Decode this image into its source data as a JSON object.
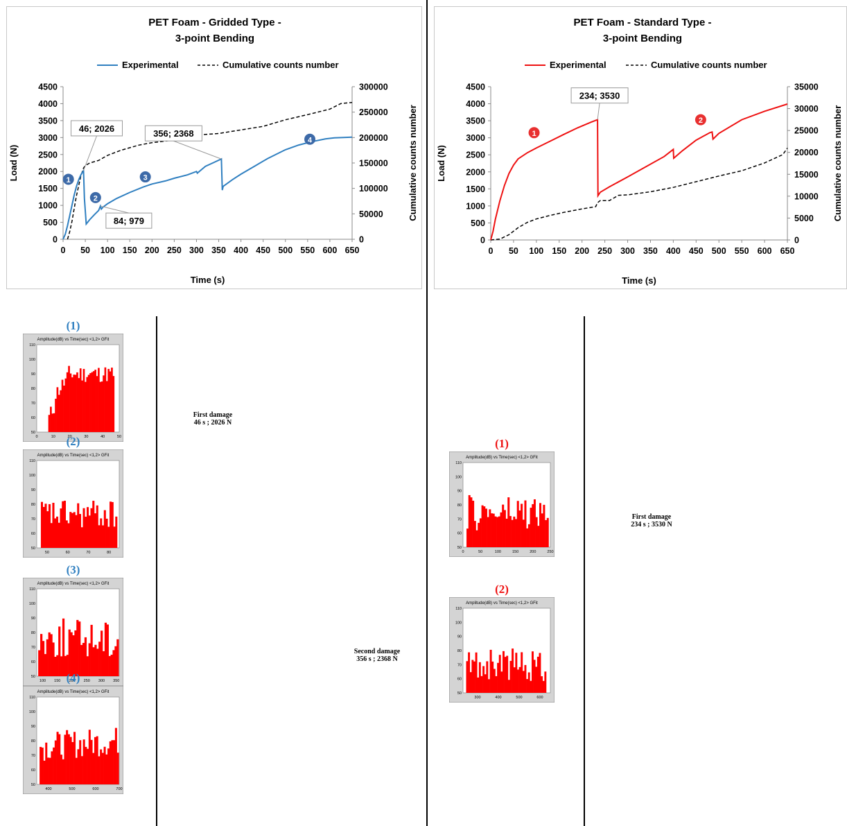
{
  "colors": {
    "gridded": "#2f7fc0",
    "standard": "#ee1111",
    "cumulative": "#000000",
    "marker_blue": "#3d6aa8",
    "marker_red": "#e83030",
    "hist_bar": "#ff0000",
    "blue_arrow": "#1a68b8",
    "red_arrow": "#e81818"
  },
  "chart_data": [
    {
      "type": "line",
      "title": "PET Foam - Gridded Type -",
      "subtitle": "3-point Bending",
      "xlabel": "Time (s)",
      "ylabel": "Load (N)",
      "y2label": "Cumulative counts number",
      "xlim": [
        0,
        650
      ],
      "ylim": [
        0,
        4500
      ],
      "y2lim": [
        0,
        300000
      ],
      "xticks": [
        "0",
        "50",
        "100",
        "150",
        "200",
        "250",
        "300",
        "350",
        "400",
        "450",
        "500",
        "550",
        "600",
        "650"
      ],
      "yticks": [
        "0",
        "500",
        "1000",
        "1500",
        "2000",
        "2500",
        "3000",
        "3500",
        "4000",
        "4500"
      ],
      "y2ticks": [
        "0",
        "50000",
        "100000",
        "150000",
        "200000",
        "250000",
        "300000"
      ],
      "legend_position": "top",
      "series": [
        {
          "name": "Experimental",
          "axis": "left",
          "style": "solid",
          "x": [
            0,
            5,
            10,
            15,
            20,
            25,
            30,
            35,
            40,
            46,
            48,
            52,
            60,
            70,
            80,
            84,
            86,
            90,
            100,
            120,
            150,
            180,
            200,
            230,
            250,
            280,
            300,
            302,
            320,
            340,
            356,
            358,
            360,
            380,
            400,
            430,
            460,
            500,
            530,
            560,
            590,
            610,
            630,
            650
          ],
          "y": [
            0,
            150,
            400,
            700,
            1000,
            1300,
            1550,
            1750,
            1900,
            2026,
            1200,
            450,
            580,
            720,
            850,
            979,
            890,
            950,
            1050,
            1200,
            1380,
            1540,
            1630,
            1720,
            1800,
            1900,
            2000,
            1950,
            2150,
            2270,
            2368,
            1450,
            1560,
            1750,
            1920,
            2150,
            2380,
            2640,
            2780,
            2880,
            2960,
            2990,
            3000,
            3010
          ]
        },
        {
          "name": "Cumulative counts number",
          "axis": "right",
          "style": "dashed",
          "x": [
            10,
            15,
            20,
            25,
            30,
            35,
            40,
            46,
            50,
            60,
            80,
            100,
            130,
            150,
            170,
            200,
            230,
            250,
            300,
            350,
            400,
            450,
            500,
            550,
            600,
            625,
            650
          ],
          "y": [
            0,
            15000,
            35000,
            60000,
            85000,
            105000,
            125000,
            140000,
            145000,
            150000,
            155000,
            165000,
            175000,
            180000,
            185000,
            190000,
            193000,
            196000,
            205000,
            208000,
            215000,
            222000,
            235000,
            245000,
            256000,
            267000,
            269000
          ]
        }
      ],
      "annotations": [
        {
          "label": "46; 2026",
          "x": 46,
          "y": 2026
        },
        {
          "label": "84; 979",
          "x": 84,
          "y": 979
        },
        {
          "label": "356; 2368",
          "x": 356,
          "y": 2368
        }
      ],
      "markers": [
        {
          "label": "1",
          "x": 12,
          "y": 1770
        },
        {
          "label": "2",
          "x": 73,
          "y": 1230
        },
        {
          "label": "3",
          "x": 185,
          "y": 1840
        },
        {
          "label": "4",
          "x": 555,
          "y": 2950
        }
      ]
    },
    {
      "type": "line",
      "title": "PET Foam - Standard Type -",
      "subtitle": "3-point Bending",
      "xlabel": "Time (s)",
      "ylabel": "Load (N)",
      "y2label": "Cumulative counts number",
      "xlim": [
        0,
        650
      ],
      "ylim": [
        0,
        4500
      ],
      "y2lim": [
        0,
        35000
      ],
      "xticks": [
        "0",
        "50",
        "100",
        "150",
        "200",
        "250",
        "300",
        "350",
        "400",
        "450",
        "500",
        "550",
        "600",
        "650"
      ],
      "yticks": [
        "0",
        "500",
        "1000",
        "1500",
        "2000",
        "2500",
        "3000",
        "3500",
        "4000",
        "4500"
      ],
      "y2ticks": [
        "0",
        "5000",
        "10000",
        "15000",
        "20000",
        "25000",
        "30000",
        "35000"
      ],
      "legend_position": "top",
      "series": [
        {
          "name": "Experimental",
          "axis": "left",
          "style": "solid",
          "x": [
            0,
            5,
            10,
            20,
            30,
            40,
            50,
            60,
            80,
            100,
            130,
            160,
            190,
            220,
            234,
            235,
            240,
            260,
            300,
            340,
            380,
            400,
            401,
            420,
            450,
            480,
            485,
            487,
            500,
            550,
            600,
            650
          ],
          "y": [
            0,
            250,
            600,
            1150,
            1600,
            1950,
            2200,
            2380,
            2560,
            2700,
            2900,
            3100,
            3290,
            3460,
            3530,
            1300,
            1400,
            1560,
            1850,
            2150,
            2450,
            2660,
            2400,
            2620,
            2930,
            3150,
            3170,
            2960,
            3130,
            3530,
            3780,
            3990
          ]
        },
        {
          "name": "Cumulative counts number",
          "axis": "right",
          "style": "dashed",
          "x": [
            0,
            20,
            40,
            60,
            80,
            100,
            130,
            160,
            200,
            230,
            234,
            240,
            260,
            280,
            300,
            350,
            400,
            450,
            500,
            550,
            600,
            640,
            650
          ],
          "y": [
            0,
            200,
            1200,
            2800,
            4000,
            4800,
            5600,
            6300,
            7100,
            7600,
            8500,
            9000,
            9000,
            10200,
            10300,
            11000,
            12000,
            13300,
            14600,
            15800,
            17600,
            19500,
            21000
          ]
        }
      ],
      "annotations": [
        {
          "label": "234; 3530",
          "x": 234,
          "y": 3530
        }
      ],
      "markers": [
        {
          "label": "1",
          "x": 95,
          "y": 3150
        },
        {
          "label": "2",
          "x": 460,
          "y": 3530
        }
      ]
    }
  ],
  "gridded_hists": [
    {
      "label": "(1)",
      "title": "Amplitude(dB) vs Time(sec) <1,2> GFit",
      "xmin": 0,
      "xmax": 50,
      "ymin": 50,
      "ymax": 110,
      "xticks": [
        "0",
        "10",
        "20",
        "30",
        "40",
        "50"
      ],
      "yticks": [
        "50",
        "60",
        "70",
        "80",
        "90",
        "100",
        "110"
      ]
    },
    {
      "label": "(2)",
      "title": "Amplitude(dB) vs Time(sec) <1,2> GFit",
      "xmin": 45,
      "xmax": 85,
      "ymin": 50,
      "ymax": 110,
      "xticks": [
        "50",
        "60",
        "70",
        "80"
      ],
      "yticks": [
        "50",
        "60",
        "70",
        "80",
        "90",
        "100",
        "110"
      ]
    },
    {
      "label": "(3)",
      "title": "Amplitude(dB) vs Time(sec) <1,2> GFit",
      "xmin": 80,
      "xmax": 360,
      "ymin": 50,
      "ymax": 110,
      "xticks": [
        "100",
        "150",
        "200",
        "250",
        "300",
        "350"
      ],
      "yticks": [
        "50",
        "60",
        "70",
        "80",
        "90",
        "100",
        "110"
      ]
    },
    {
      "label": "(4)",
      "title": "Amplitude(dB) vs Time(sec) <1,2> GFit",
      "xmin": 350,
      "xmax": 700,
      "ymin": 50,
      "ymax": 110,
      "xticks": [
        "400",
        "500",
        "600",
        "700"
      ],
      "yticks": [
        "50",
        "60",
        "70",
        "80",
        "90",
        "100",
        "110"
      ]
    }
  ],
  "standard_hists": [
    {
      "label": "(1)",
      "title": "Amplitude(dB) vs Time(sec) <1,2> GFit",
      "xmin": 0,
      "xmax": 250,
      "ymin": 50,
      "ymax": 110,
      "xticks": [
        "0",
        "50",
        "100",
        "150",
        "200",
        "250"
      ],
      "yticks": [
        "50",
        "60",
        "70",
        "80",
        "90",
        "100",
        "110"
      ]
    },
    {
      "label": "(2)",
      "title": "Amplitude(dB) vs Time(sec) <1,2> GFit",
      "xmin": 230,
      "xmax": 650,
      "ymin": 50,
      "ymax": 110,
      "xticks": [
        "300",
        "400",
        "500",
        "600"
      ],
      "yticks": [
        "50",
        "60",
        "70",
        "80",
        "90",
        "100",
        "110"
      ]
    }
  ],
  "gridded_damage": {
    "first_line1": "First damage",
    "first_line2": "46 s ; 2026 N",
    "second_line1": "Second damage",
    "second_line2": "356 s ; 2368 N"
  },
  "standard_damage": {
    "first_line1": "First damage",
    "first_line2": "234 s ; 3530 N"
  }
}
